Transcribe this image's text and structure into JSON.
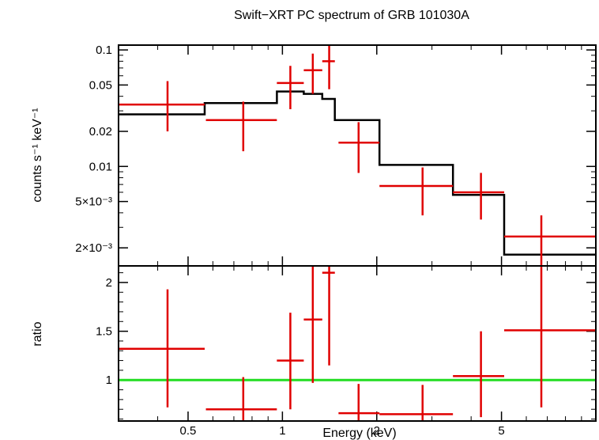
{
  "chart_data": [
    {
      "type": "line",
      "title": "Swift−XRT PC spectrum of GRB 101030A",
      "xlabel": "Energy (keV)",
      "ylabel": "counts s⁻¹ keV⁻¹",
      "x_scale": "log",
      "y_scale": "log",
      "xlim": [
        0.3,
        10
      ],
      "ylim": [
        0.0014,
        0.11
      ],
      "grid": false,
      "y_ticks": [
        {
          "value": 0.1,
          "label": "0.1"
        },
        {
          "value": 0.05,
          "label": "0.05"
        },
        {
          "value": 0.02,
          "label": "0.02"
        },
        {
          "value": 0.01,
          "label": "0.01"
        },
        {
          "value": 0.005,
          "label": "5×10⁻³"
        },
        {
          "value": 0.002,
          "label": "2×10⁻³"
        }
      ],
      "series": [
        {
          "style": "data-crosses",
          "color": "#e00000",
          "points": [
            {
              "x": 0.43,
              "x_lo": 0.3,
              "x_hi": 0.565,
              "y": 0.034,
              "y_lo": 0.02,
              "y_hi": 0.054
            },
            {
              "x": 0.75,
              "x_lo": 0.57,
              "x_hi": 0.96,
              "y": 0.025,
              "y_lo": 0.0135,
              "y_hi": 0.036
            },
            {
              "x": 1.06,
              "x_lo": 0.96,
              "x_hi": 1.17,
              "y": 0.052,
              "y_lo": 0.031,
              "y_hi": 0.073
            },
            {
              "x": 1.25,
              "x_lo": 1.17,
              "x_hi": 1.34,
              "y": 0.067,
              "y_lo": 0.042,
              "y_hi": 0.093
            },
            {
              "x": 1.41,
              "x_lo": 1.34,
              "x_hi": 1.47,
              "y": 0.08,
              "y_lo": 0.046,
              "y_hi": 0.115
            },
            {
              "x": 1.75,
              "x_lo": 1.51,
              "x_hi": 2.04,
              "y": 0.016,
              "y_lo": 0.0088,
              "y_hi": 0.024
            },
            {
              "x": 2.8,
              "x_lo": 2.04,
              "x_hi": 3.5,
              "y": 0.0068,
              "y_lo": 0.0038,
              "y_hi": 0.0098
            },
            {
              "x": 4.3,
              "x_lo": 3.5,
              "x_hi": 5.1,
              "y": 0.006,
              "y_lo": 0.0035,
              "y_hi": 0.0088
            },
            {
              "x": 6.7,
              "x_lo": 5.1,
              "x_hi": 10,
              "y": 0.0025,
              "y_lo": 0.0012,
              "y_hi": 0.0038
            }
          ]
        },
        {
          "style": "model-histogram",
          "color": "#000000",
          "steps": [
            {
              "x_lo": 0.3,
              "x_hi": 0.565,
              "y": 0.028
            },
            {
              "x_lo": 0.565,
              "x_hi": 0.96,
              "y": 0.035
            },
            {
              "x_lo": 0.96,
              "x_hi": 1.17,
              "y": 0.044
            },
            {
              "x_lo": 1.17,
              "x_hi": 1.34,
              "y": 0.042
            },
            {
              "x_lo": 1.34,
              "x_hi": 1.47,
              "y": 0.038
            },
            {
              "x_lo": 1.47,
              "x_hi": 2.04,
              "y": 0.025
            },
            {
              "x_lo": 2.04,
              "x_hi": 3.5,
              "y": 0.0103
            },
            {
              "x_lo": 3.5,
              "x_hi": 5.1,
              "y": 0.0057
            },
            {
              "x_lo": 5.1,
              "x_hi": 10,
              "y": 0.00175
            }
          ]
        }
      ]
    },
    {
      "type": "line",
      "xlabel": "Energy (keV)",
      "ylabel": "ratio",
      "x_scale": "log",
      "xlim": [
        0.3,
        10
      ],
      "ylim": [
        0.58,
        2.17
      ],
      "grid": false,
      "x_ticks": [
        {
          "value": 0.5,
          "label": "0.5"
        },
        {
          "value": 1,
          "label": "1"
        },
        {
          "value": 2,
          "label": "2"
        },
        {
          "value": 5,
          "label": "5"
        }
      ],
      "y_ticks": [
        {
          "value": 1,
          "label": "1"
        },
        {
          "value": 1.5,
          "label": "1.5"
        },
        {
          "value": 2,
          "label": "2"
        }
      ],
      "reference_line": {
        "y": 1,
        "color": "#22dd22"
      },
      "series": [
        {
          "style": "data-crosses",
          "color": "#e00000",
          "points": [
            {
              "x": 0.43,
              "x_lo": 0.3,
              "x_hi": 0.565,
              "y": 1.32,
              "y_lo": 0.72,
              "y_hi": 1.93
            },
            {
              "x": 0.75,
              "x_lo": 0.57,
              "x_hi": 0.96,
              "y": 0.7,
              "y_lo": 0.58,
              "y_hi": 1.03
            },
            {
              "x": 1.06,
              "x_lo": 0.96,
              "x_hi": 1.17,
              "y": 1.2,
              "y_lo": 0.7,
              "y_hi": 1.69
            },
            {
              "x": 1.25,
              "x_lo": 1.17,
              "x_hi": 1.34,
              "y": 1.62,
              "y_lo": 0.97,
              "y_hi": 2.17
            },
            {
              "x": 1.41,
              "x_lo": 1.34,
              "x_hi": 1.47,
              "y": 2.1,
              "y_lo": 1.15,
              "y_hi": 2.17
            },
            {
              "x": 1.75,
              "x_lo": 1.51,
              "x_hi": 2.04,
              "y": 0.66,
              "y_lo": 0.58,
              "y_hi": 0.96
            },
            {
              "x": 2.8,
              "x_lo": 2.04,
              "x_hi": 3.5,
              "y": 0.65,
              "y_lo": 0.58,
              "y_hi": 0.95
            },
            {
              "x": 4.3,
              "x_lo": 3.5,
              "x_hi": 5.1,
              "y": 1.04,
              "y_lo": 0.62,
              "y_hi": 1.5
            },
            {
              "x": 6.7,
              "x_lo": 5.1,
              "x_hi": 10,
              "y": 1.51,
              "y_lo": 0.72,
              "y_hi": 2.17
            }
          ]
        }
      ]
    }
  ]
}
